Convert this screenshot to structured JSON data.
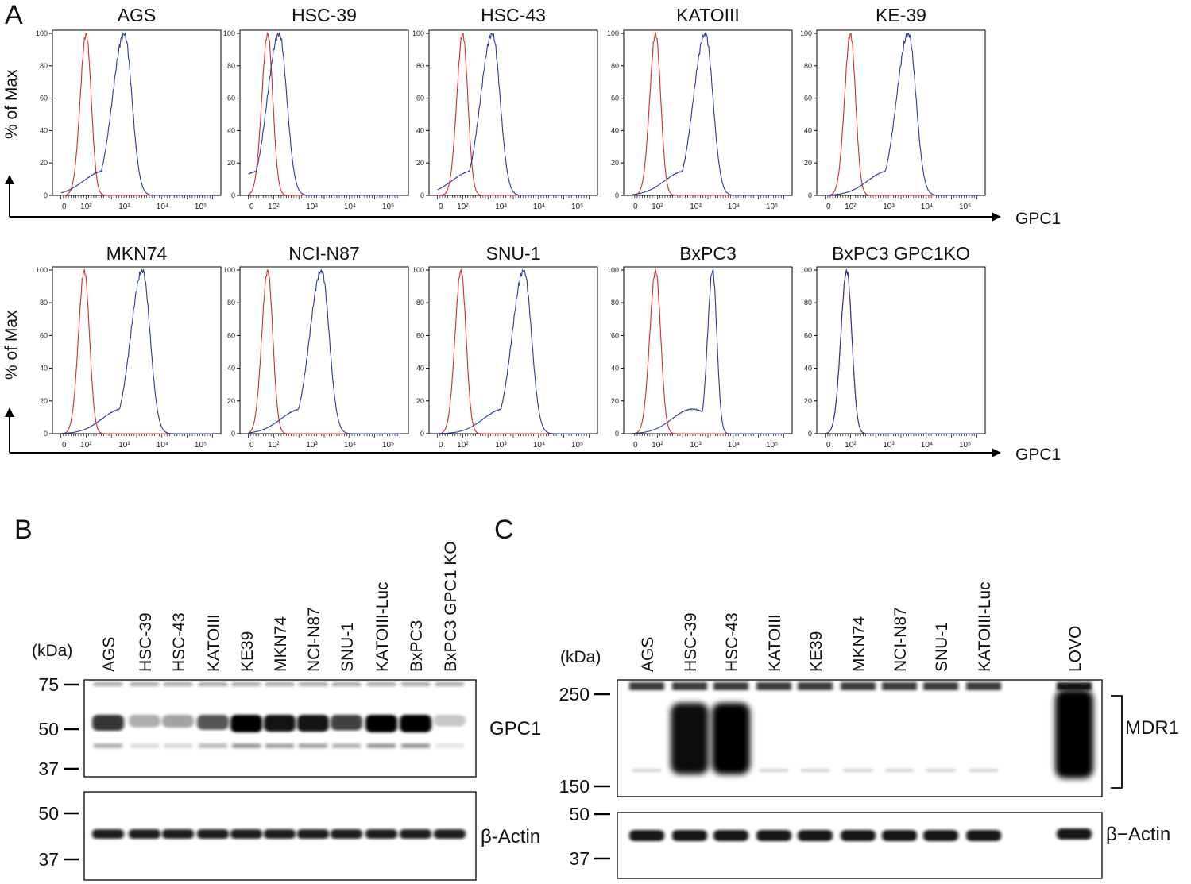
{
  "panels": {
    "a": "A",
    "b": "B",
    "c": "C"
  },
  "histogram_axes": {
    "y_label": "% of Max",
    "x_label": "GPC1",
    "y_ticks": [
      "0",
      "20",
      "40",
      "60",
      "80",
      "100"
    ],
    "x_ticks": [
      "0",
      "10²",
      "10³",
      "10⁴",
      "10⁵"
    ]
  },
  "chart_data": [
    {
      "type": "line",
      "title": "AGS",
      "xscale": "log",
      "ylim": [
        0,
        100
      ],
      "series": [
        {
          "color": "#d42a2a",
          "peak_x": 100,
          "peak_y": 100
        },
        {
          "color": "#283c96",
          "peak_x": 1000,
          "peak_y": 100
        }
      ]
    },
    {
      "type": "line",
      "title": "HSC-39",
      "xscale": "log",
      "ylim": [
        0,
        100
      ],
      "series": [
        {
          "color": "#d42a2a",
          "peak_x": 70,
          "peak_y": 100
        },
        {
          "color": "#283c96",
          "peak_x": 140,
          "peak_y": 100
        }
      ]
    },
    {
      "type": "line",
      "title": "HSC-43",
      "xscale": "log",
      "ylim": [
        0,
        100
      ],
      "series": [
        {
          "color": "#d42a2a",
          "peak_x": 100,
          "peak_y": 100
        },
        {
          "color": "#283c96",
          "peak_x": 600,
          "peak_y": 100
        }
      ]
    },
    {
      "type": "line",
      "title": "KATOIII",
      "xscale": "log",
      "ylim": [
        0,
        100
      ],
      "series": [
        {
          "color": "#d42a2a",
          "peak_x": 90,
          "peak_y": 100
        },
        {
          "color": "#283c96",
          "peak_x": 1800,
          "peak_y": 100
        }
      ]
    },
    {
      "type": "line",
      "title": "KE-39",
      "xscale": "log",
      "ylim": [
        0,
        100
      ],
      "series": [
        {
          "color": "#d42a2a",
          "peak_x": 100,
          "peak_y": 100
        },
        {
          "color": "#283c96",
          "peak_x": 3300,
          "peak_y": 100
        }
      ]
    },
    {
      "type": "line",
      "title": "MKN74",
      "xscale": "log",
      "ylim": [
        0,
        100
      ],
      "series": [
        {
          "color": "#d42a2a",
          "peak_x": 90,
          "peak_y": 100
        },
        {
          "color": "#283c96",
          "peak_x": 3000,
          "peak_y": 100
        }
      ]
    },
    {
      "type": "line",
      "title": "NCI-N87",
      "xscale": "log",
      "ylim": [
        0,
        100
      ],
      "series": [
        {
          "color": "#d42a2a",
          "peak_x": 70,
          "peak_y": 100
        },
        {
          "color": "#283c96",
          "peak_x": 1800,
          "peak_y": 100
        }
      ]
    },
    {
      "type": "line",
      "title": "SNU-1",
      "xscale": "log",
      "ylim": [
        0,
        100
      ],
      "series": [
        {
          "color": "#d42a2a",
          "peak_x": 90,
          "peak_y": 100
        },
        {
          "color": "#283c96",
          "peak_x": 4000,
          "peak_y": 100
        }
      ]
    },
    {
      "type": "line",
      "title": "BxPC3",
      "xscale": "log",
      "ylim": [
        0,
        100
      ],
      "series": [
        {
          "color": "#d42a2a",
          "peak_x": 90,
          "peak_y": 100
        },
        {
          "color": "#283c96",
          "peak_x": 2800,
          "peak_y": 100
        }
      ]
    },
    {
      "type": "line",
      "title": "BxPC3 GPC1KO",
      "xscale": "log",
      "ylim": [
        0,
        100
      ],
      "series": [
        {
          "color": "#d42a2a",
          "peak_x": 80,
          "peak_y": 100
        },
        {
          "color": "#283c96",
          "peak_x": 80,
          "peak_y": 100
        }
      ]
    }
  ],
  "blot_b": {
    "unit": "(kDa)",
    "lanes": [
      "AGS",
      "HSC-39",
      "HSC-43",
      "KATOIII",
      "KE39",
      "MKN74",
      "NCI-N87",
      "SNU-1",
      "KATOIII-Luc",
      "BxPC3",
      "BxPC3 GPC1 KO"
    ],
    "top_markers": [
      "75",
      "50",
      "37"
    ],
    "bottom_markers": [
      "50",
      "37"
    ],
    "top_label": "GPC1",
    "bottom_label": "β-Actin",
    "gpc1_intensity": [
      0.75,
      0.2,
      0.25,
      0.6,
      1.0,
      0.9,
      0.9,
      0.7,
      1.0,
      1.0,
      0.08
    ]
  },
  "blot_c": {
    "unit": "(kDa)",
    "lanes": [
      "AGS",
      "HSC-39",
      "HSC-43",
      "KATOIII",
      "KE39",
      "MKN74",
      "NCI-N87",
      "SNU-1",
      "KATOIII-Luc",
      "LOVO"
    ],
    "top_markers": [
      "250",
      "150"
    ],
    "bottom_markers": [
      "50",
      "37"
    ],
    "top_label": "MDR1",
    "bottom_label": "β−Actin",
    "mdr1_intensity": [
      0.05,
      0.95,
      1.0,
      0.05,
      0.05,
      0.05,
      0.05,
      0.05,
      0.08,
      1.0
    ]
  }
}
